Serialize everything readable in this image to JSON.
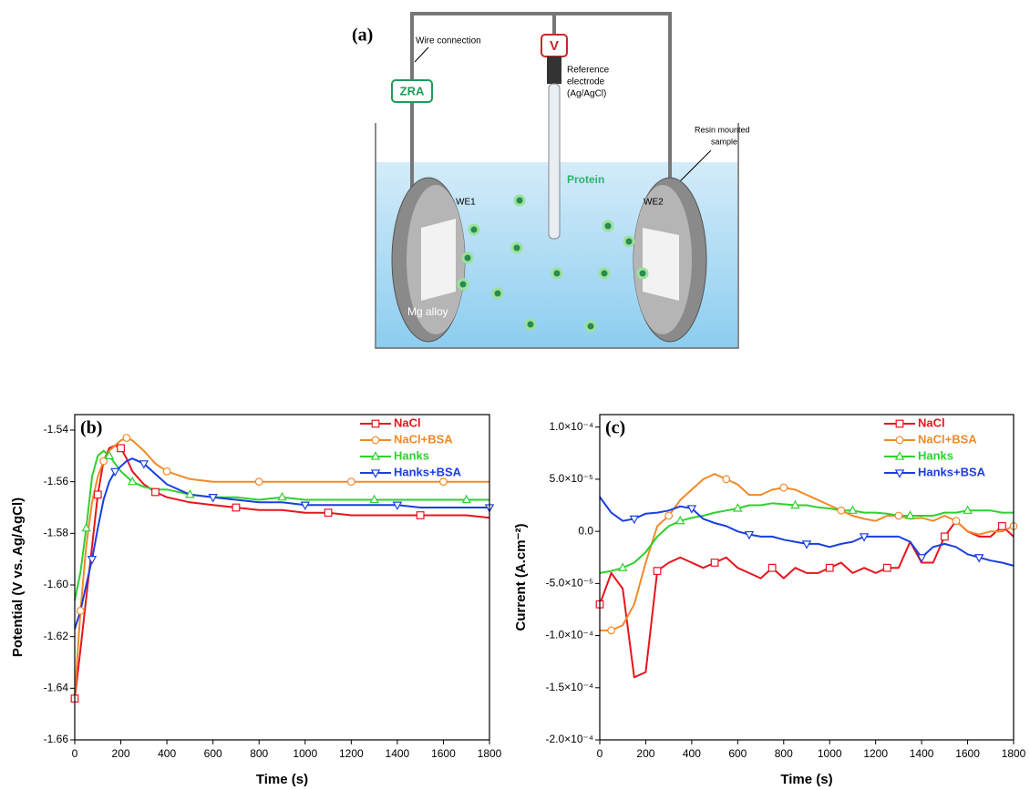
{
  "diagram": {
    "label": "(a)",
    "wire_label": "Wire connection",
    "voltmeter": "V",
    "zra": "ZRA",
    "reference_electrode": [
      "Reference",
      "electrode",
      "(Ag/AgCl)"
    ],
    "sample_label": [
      "Resin mounted",
      "sample"
    ],
    "protein": "Protein",
    "we1": "WE1",
    "we2": "WE2",
    "alloy": "Mg alloy"
  },
  "chart_data": [
    {
      "type": "line",
      "label": "(b)",
      "x_label": "Time (s)",
      "y_label": "Potential (V vs. Ag/AgCl)",
      "x": [
        0,
        25,
        50,
        75,
        100,
        125,
        150,
        175,
        200,
        225,
        250,
        300,
        350,
        400,
        500,
        600,
        700,
        800,
        900,
        1000,
        1100,
        1200,
        1300,
        1400,
        1500,
        1600,
        1700,
        1800
      ],
      "series": [
        {
          "name": "NaCl",
          "color": "#e8141c",
          "marker": "square",
          "values": [
            -1.644,
            -1.625,
            -1.605,
            -1.585,
            -1.565,
            -1.552,
            -1.547,
            -1.546,
            -1.547,
            -1.551,
            -1.556,
            -1.561,
            -1.564,
            -1.566,
            -1.568,
            -1.569,
            -1.57,
            -1.571,
            -1.571,
            -1.572,
            -1.572,
            -1.573,
            -1.573,
            -1.573,
            -1.573,
            -1.573,
            -1.573,
            -1.574
          ]
        },
        {
          "name": "NaCl+BSA",
          "color": "#f2892a",
          "marker": "circle",
          "values": [
            -1.643,
            -1.61,
            -1.585,
            -1.568,
            -1.558,
            -1.552,
            -1.548,
            -1.546,
            -1.544,
            -1.543,
            -1.544,
            -1.548,
            -1.553,
            -1.556,
            -1.559,
            -1.56,
            -1.56,
            -1.56,
            -1.56,
            -1.56,
            -1.56,
            -1.56,
            -1.56,
            -1.56,
            -1.56,
            -1.56,
            -1.56,
            -1.56
          ]
        },
        {
          "name": "Hanks",
          "color": "#2ed12e",
          "marker": "triangle-up",
          "values": [
            -1.606,
            -1.595,
            -1.578,
            -1.558,
            -1.55,
            -1.548,
            -1.55,
            -1.553,
            -1.556,
            -1.558,
            -1.56,
            -1.562,
            -1.563,
            -1.563,
            -1.565,
            -1.566,
            -1.566,
            -1.567,
            -1.566,
            -1.567,
            -1.567,
            -1.567,
            -1.567,
            -1.567,
            -1.567,
            -1.567,
            -1.567,
            -1.567
          ]
        },
        {
          "name": "Hanks+BSA",
          "color": "#1a3fe0",
          "marker": "triangle-down",
          "values": [
            -1.617,
            -1.61,
            -1.6,
            -1.59,
            -1.578,
            -1.567,
            -1.56,
            -1.556,
            -1.554,
            -1.552,
            -1.551,
            -1.553,
            -1.557,
            -1.561,
            -1.565,
            -1.566,
            -1.567,
            -1.568,
            -1.568,
            -1.569,
            -1.569,
            -1.569,
            -1.569,
            -1.569,
            -1.57,
            -1.57,
            -1.57,
            -1.57
          ]
        }
      ],
      "xlim": [
        0,
        1800
      ],
      "xticks": [
        0,
        200,
        400,
        600,
        800,
        1000,
        1200,
        1400,
        1600,
        1800
      ],
      "ylim": [
        -1.66,
        -1.534
      ],
      "yticks": [
        -1.66,
        -1.64,
        -1.62,
        {
          "value": -1.6,
          "label": "-1.60"
        },
        -1.58,
        -1.56,
        -1.54
      ],
      "legend": "upper right"
    },
    {
      "type": "line",
      "label": "(c)",
      "x_label": "Time (s)",
      "y_label": "Current (A.cm⁻²)",
      "x": [
        0,
        50,
        100,
        150,
        200,
        250,
        300,
        350,
        400,
        450,
        500,
        550,
        600,
        650,
        700,
        750,
        800,
        850,
        900,
        950,
        1000,
        1050,
        1100,
        1150,
        1200,
        1250,
        1300,
        1350,
        1400,
        1450,
        1500,
        1550,
        1600,
        1650,
        1700,
        1750,
        1800
      ],
      "series": [
        {
          "name": "NaCl",
          "color": "#e8141c",
          "marker": "square",
          "values": [
            -7e-05,
            -4e-05,
            -5.5e-05,
            -0.00014,
            -0.000135,
            -3.8e-05,
            -3e-05,
            -2.5e-05,
            -3e-05,
            -3.5e-05,
            -3e-05,
            -2.5e-05,
            -3.5e-05,
            -4e-05,
            -4.5e-05,
            -3.5e-05,
            -4.5e-05,
            -3.5e-05,
            -4e-05,
            -4e-05,
            -3.5e-05,
            -3e-05,
            -4e-05,
            -3.5e-05,
            -4e-05,
            -3.5e-05,
            -3.5e-05,
            -1e-05,
            -3e-05,
            -3e-05,
            -5e-06,
            1e-05,
            0,
            -5e-06,
            -5e-06,
            5e-06,
            -5e-06
          ]
        },
        {
          "name": "NaCl+BSA",
          "color": "#f2892a",
          "marker": "circle",
          "values": [
            -9.5e-05,
            -9.5e-05,
            -9e-05,
            -7e-05,
            -3e-05,
            5e-06,
            1.5e-05,
            3e-05,
            4e-05,
            5e-05,
            5.5e-05,
            5e-05,
            4.5e-05,
            3.5e-05,
            3.5e-05,
            4e-05,
            4.2e-05,
            4e-05,
            3.5e-05,
            3e-05,
            2.5e-05,
            2e-05,
            1.5e-05,
            1.2e-05,
            1e-05,
            1.5e-05,
            1.5e-05,
            1.2e-05,
            1.3e-05,
            1e-05,
            1.5e-05,
            1e-05,
            0,
            -3e-06,
            0,
            0,
            5e-06
          ]
        },
        {
          "name": "Hanks",
          "color": "#2ed12e",
          "marker": "triangle-up",
          "values": [
            -4e-05,
            -3.8e-05,
            -3.5e-05,
            -3e-05,
            -2e-05,
            -5e-06,
            5e-06,
            1e-05,
            1.3e-05,
            1.5e-05,
            1.8e-05,
            2e-05,
            2.2e-05,
            2.5e-05,
            2.5e-05,
            2.7e-05,
            2.6e-05,
            2.5e-05,
            2.5e-05,
            2.3e-05,
            2.2e-05,
            2e-05,
            2e-05,
            1.8e-05,
            1.8e-05,
            1.7e-05,
            1.5e-05,
            1.5e-05,
            1.5e-05,
            1.5e-05,
            1.8e-05,
            1.8e-05,
            2e-05,
            2e-05,
            2e-05,
            1.8e-05,
            1.8e-05
          ]
        },
        {
          "name": "Hanks+BSA",
          "color": "#1a3fe0",
          "marker": "triangle-down",
          "values": [
            3.3e-05,
            1.8e-05,
            1e-05,
            1.2e-05,
            1.7e-05,
            1.8e-05,
            2e-05,
            2.4e-05,
            2.2e-05,
            1.2e-05,
            8e-06,
            5e-06,
            0,
            -3e-06,
            -5e-06,
            -5e-06,
            -8e-06,
            -1e-05,
            -1.2e-05,
            -1.2e-05,
            -1.5e-05,
            -1.2e-05,
            -1e-05,
            -5e-06,
            -5e-06,
            -5e-06,
            -5e-06,
            -1e-05,
            -2.5e-05,
            -1.5e-05,
            -1.2e-05,
            -1.5e-05,
            -2.2e-05,
            -2.5e-05,
            -2.8e-05,
            -3e-05,
            -3.3e-05
          ]
        }
      ],
      "xlim": [
        0,
        1800
      ],
      "xticks": [
        0,
        200,
        400,
        600,
        800,
        1000,
        1200,
        1400,
        1600,
        1800
      ],
      "ylim": [
        -0.0002,
        0.000112
      ],
      "yticks": [
        {
          "value": -0.0002,
          "label": "-2.0×10⁻⁴"
        },
        {
          "value": -0.00015,
          "label": "-1.5×10⁻⁴"
        },
        {
          "value": -0.0001,
          "label": "-1.0×10⁻⁴"
        },
        {
          "value": -5e-05,
          "label": "-5.0×10⁻⁵"
        },
        {
          "value": 0,
          "label": "0.0"
        },
        {
          "value": 5e-05,
          "label": "5.0×10⁻⁵"
        },
        {
          "value": 0.0001,
          "label": "1.0×10⁻⁴"
        }
      ],
      "legend": "upper right"
    }
  ]
}
